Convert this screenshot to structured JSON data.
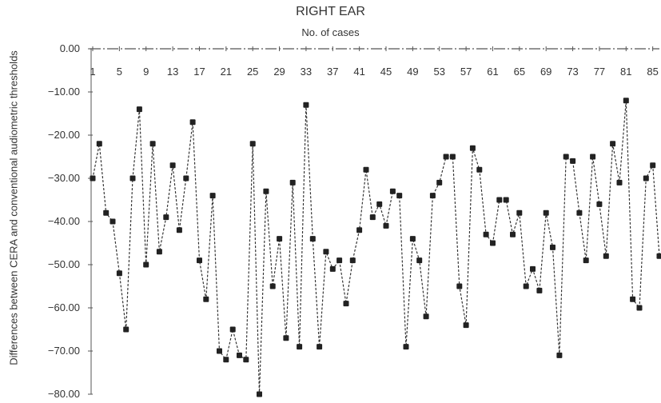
{
  "chart_data": {
    "type": "line",
    "title": "RIGHT EAR",
    "xlabel": "No. of cases",
    "ylabel": "Differences between CERA and conventional audiometric thresholds",
    "ylim": [
      -80,
      0
    ],
    "yticks": [
      "0.00",
      "−10.00",
      "−20.00",
      "−30.00",
      "−40.00",
      "−50.00",
      "−60.00",
      "−70.00",
      "−80.00"
    ],
    "xticks": [
      "1",
      "5",
      "9",
      "13",
      "17",
      "21",
      "25",
      "29",
      "33",
      "37",
      "41",
      "45",
      "49",
      "53",
      "57",
      "61",
      "65",
      "69",
      "73",
      "77",
      "81",
      "85"
    ],
    "x_axis_position": "top",
    "grid": false,
    "legend": "none",
    "marker": "square",
    "line_style": "dotted",
    "color": "#333333",
    "x": [
      1,
      2,
      3,
      4,
      5,
      6,
      7,
      8,
      9,
      10,
      11,
      12,
      13,
      14,
      15,
      16,
      17,
      18,
      19,
      20,
      21,
      22,
      23,
      24,
      25,
      26,
      27,
      28,
      29,
      30,
      31,
      32,
      33,
      34,
      35,
      36,
      37,
      38,
      39,
      40,
      41,
      42,
      43,
      44,
      45,
      46,
      47,
      48,
      49,
      50,
      51,
      52,
      53,
      54,
      55,
      56,
      57,
      58,
      59,
      60,
      61,
      62,
      63,
      64,
      65,
      66,
      67,
      68,
      69,
      70,
      71,
      72,
      73,
      74,
      75,
      76,
      77,
      78,
      79,
      80,
      81,
      82,
      83,
      84,
      85,
      86
    ],
    "values": [
      -30,
      -22,
      -38,
      -40,
      -52,
      -65,
      -30,
      -14,
      -50,
      -22,
      -47,
      -39,
      -27,
      -42,
      -30,
      -17,
      -49,
      -58,
      -34,
      -70,
      -72,
      -65,
      -71,
      -72,
      -22,
      -80,
      -33,
      -55,
      -44,
      -67,
      -31,
      -69,
      -13,
      -44,
      -69,
      -47,
      -51,
      -49,
      -59,
      -49,
      -42,
      -28,
      -39,
      -36,
      -41,
      -33,
      -34,
      -69,
      -44,
      -49,
      -62,
      -34,
      -31,
      -25,
      -25,
      -55,
      -64,
      -23,
      -28,
      -43,
      -45,
      -35,
      -35,
      -43,
      -38,
      -55,
      -51,
      -56,
      -38,
      -46,
      -71,
      -25,
      -26,
      -38,
      -49,
      -25,
      -36,
      -48,
      -22,
      -31,
      -12,
      -58,
      -60,
      -30,
      -27,
      -48
    ]
  }
}
